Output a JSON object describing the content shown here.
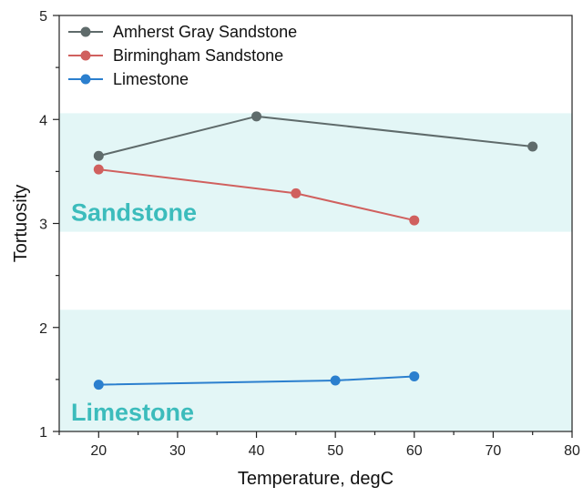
{
  "chart_data": {
    "type": "line",
    "xlabel": "Temperature, degC",
    "ylabel": "Tortuosity",
    "xlim": [
      15,
      80
    ],
    "ylim": [
      1,
      5
    ],
    "x_ticks": [
      20,
      30,
      40,
      50,
      60,
      70,
      80
    ],
    "y_ticks": [
      1,
      2,
      3,
      4,
      5
    ],
    "grid": false,
    "legend_position": "top-left",
    "bands": [
      {
        "label": "Sandstone",
        "y_range": [
          2.92,
          4.06
        ],
        "color": "#e3f6f6",
        "label_color": "#3cbcbc"
      },
      {
        "label": "Limestone",
        "y_range": [
          1.0,
          2.17
        ],
        "color": "#e3f6f6",
        "label_color": "#3cbcbc"
      }
    ],
    "series": [
      {
        "name": "Amherst Gray Sandstone",
        "color": "#5f6b6b",
        "x": [
          20,
          40,
          75
        ],
        "y": [
          3.65,
          4.03,
          3.74
        ]
      },
      {
        "name": "Birmingham Sandstone",
        "color": "#d0605e",
        "x": [
          20,
          45,
          60
        ],
        "y": [
          3.52,
          3.29,
          3.03
        ]
      },
      {
        "name": "Limestone",
        "color": "#2b7fce",
        "x": [
          20,
          50,
          60
        ],
        "y": [
          1.45,
          1.49,
          1.53
        ]
      }
    ]
  }
}
